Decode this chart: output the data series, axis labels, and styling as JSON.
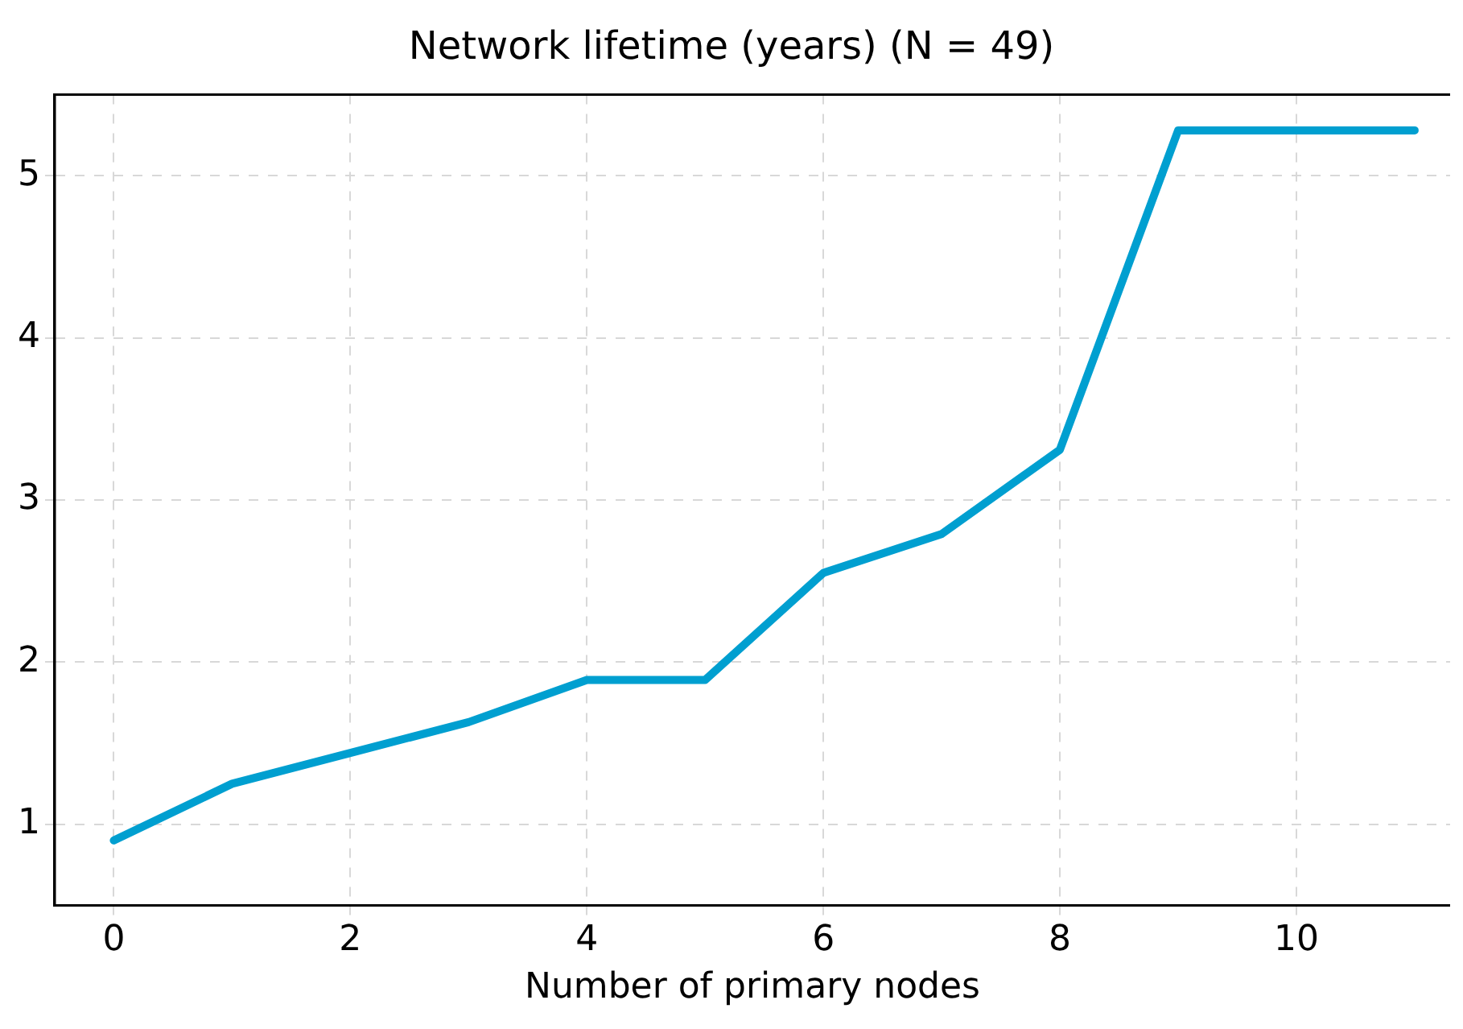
{
  "chart_data": {
    "type": "line",
    "title": "Network lifetime (years) (N = 49)",
    "xlabel": "Number of primary nodes",
    "x": [
      0,
      1,
      2,
      3,
      4,
      5,
      6,
      7,
      8,
      9,
      10,
      11
    ],
    "series": [
      {
        "color": "#009fd0",
        "values": [
          0.9,
          1.25,
          1.44,
          1.63,
          1.89,
          1.89,
          2.55,
          2.79,
          3.31,
          5.28,
          5.28,
          5.28
        ]
      }
    ],
    "xlim": [
      -0.5,
      11.3
    ],
    "ylim": [
      0.5,
      5.5
    ],
    "xticks": [
      0,
      2,
      4,
      6,
      8,
      10
    ],
    "yticks": [
      1,
      2,
      3,
      4,
      5
    ],
    "grid": true,
    "legend": false,
    "marker": "none",
    "line_style": "solid"
  }
}
